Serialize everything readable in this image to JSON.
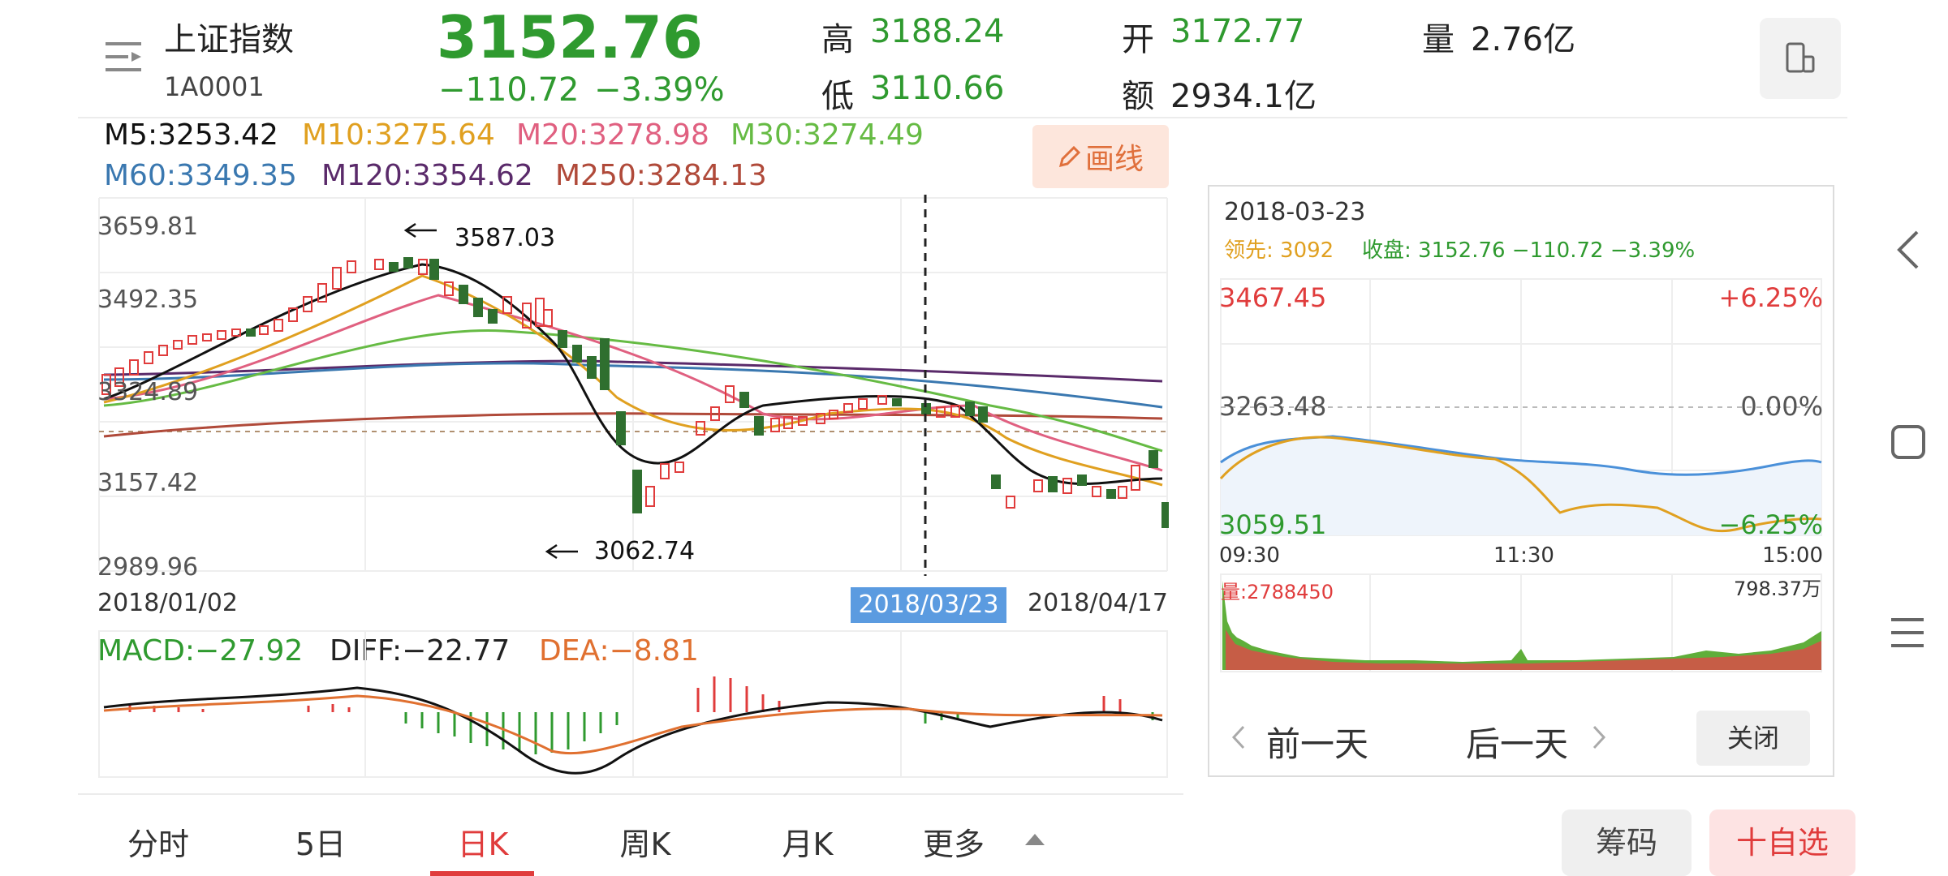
{
  "header": {
    "name": "上证指数",
    "code": "1A0001",
    "price": "3152.76",
    "change": "−110.72",
    "change_pct": "−3.39%",
    "high_label": "高",
    "high": "3188.24",
    "low_label": "低",
    "low": "3110.66",
    "open_label": "开",
    "open": "3172.77",
    "amount_label": "额",
    "amount": "2934.1亿",
    "volume_label": "量",
    "volume": "2.76亿"
  },
  "ma": {
    "m5": "M5:3253.42",
    "m10": "M10:3275.64",
    "m20": "M20:3278.98",
    "m30": "M30:3274.49",
    "m60": "M60:3349.35",
    "m120": "M120:3354.62",
    "m250": "M250:3284.13"
  },
  "draw_button": "画线",
  "kline": {
    "y_labels": [
      "3659.81",
      "3492.35",
      "3324.89",
      "3157.42",
      "2989.96"
    ],
    "max_annotation": "3587.03",
    "min_annotation": "3062.74",
    "date_start": "2018/01/02",
    "date_selected": "2018/03/23",
    "date_end": "2018/04/17"
  },
  "macd": {
    "macd": "MACD:−27.92",
    "diff": "DIFF:−22.77",
    "dea": "DEA:−8.81"
  },
  "tabs": [
    "分时",
    "5日",
    "日K",
    "周K",
    "月K",
    "更多"
  ],
  "active_tab": "日K",
  "popup": {
    "date": "2018-03-23",
    "lead": "领先: 3092",
    "close": "收盘: 3152.76 −110.72 −3.39%",
    "top_value": "3467.45",
    "top_pct": "+6.25%",
    "mid_value": "3263.48",
    "mid_pct": "0.00%",
    "bottom_value": "3059.51",
    "bottom_pct": "−6.25%",
    "times": [
      "09:30",
      "11:30",
      "15:00"
    ],
    "volume_label": "量:2788450",
    "volume_max": "798.37万",
    "prev_day": "前一天",
    "next_day": "后一天",
    "close_button": "关闭"
  },
  "bottom_buttons": {
    "chips": "筹码",
    "add_watch": "十自选"
  },
  "colors": {
    "up": "#e03c3c",
    "down": "#2f9a2f",
    "m5": "#111111",
    "m10": "#e0a020",
    "m20": "#e06080",
    "m30": "#66bb44",
    "m60": "#3a78b0",
    "m120": "#5a2a6a",
    "m250": "#b04a3a"
  },
  "icons": [
    "menu-icon",
    "landscape-toggle-icon",
    "pencil-icon",
    "back-arrow-icon",
    "home-icon",
    "recents-icon",
    "chevron-left-icon",
    "chevron-right-icon",
    "triangle-up-icon"
  ]
}
